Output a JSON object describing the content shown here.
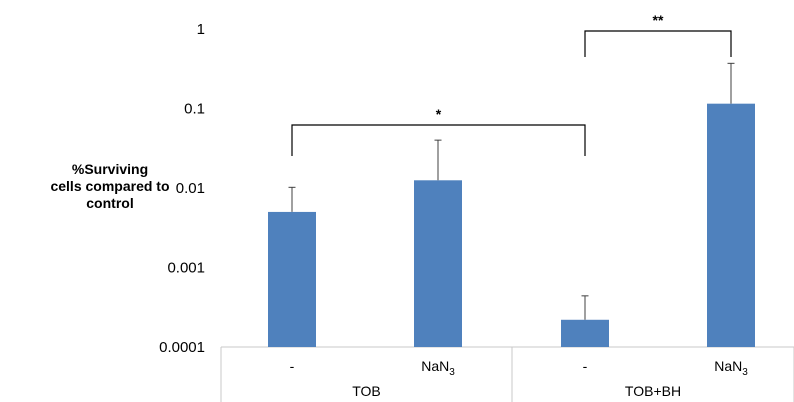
{
  "chart_data": {
    "type": "bar",
    "scale": "log",
    "ylim": [
      0.0001,
      1
    ],
    "yticks": [
      "1",
      "0.1",
      "0.01",
      "0.001",
      "0.0001"
    ],
    "ylabel_lines": [
      "%Surviving",
      "cells compared to",
      "control"
    ],
    "groups": [
      "TOB",
      "TOB+BH"
    ],
    "bars": [
      {
        "group": "TOB",
        "label": "-",
        "value": 0.005,
        "error_upper": 0.0102
      },
      {
        "group": "TOB",
        "label": "NaN3",
        "value": 0.0125,
        "error_upper": 0.04
      },
      {
        "group": "TOB+BH",
        "label": "-",
        "value": 0.00022,
        "error_upper": 0.00044
      },
      {
        "group": "TOB+BH",
        "label": "NaN3",
        "value": 0.115,
        "error_upper": 0.37
      }
    ],
    "bar_color": "#4f81bd",
    "grid": false,
    "significance": [
      {
        "from_bar": 0,
        "to_bar": 2,
        "label": "*"
      },
      {
        "from_bar": 2,
        "to_bar": 3,
        "label": "**"
      }
    ]
  }
}
